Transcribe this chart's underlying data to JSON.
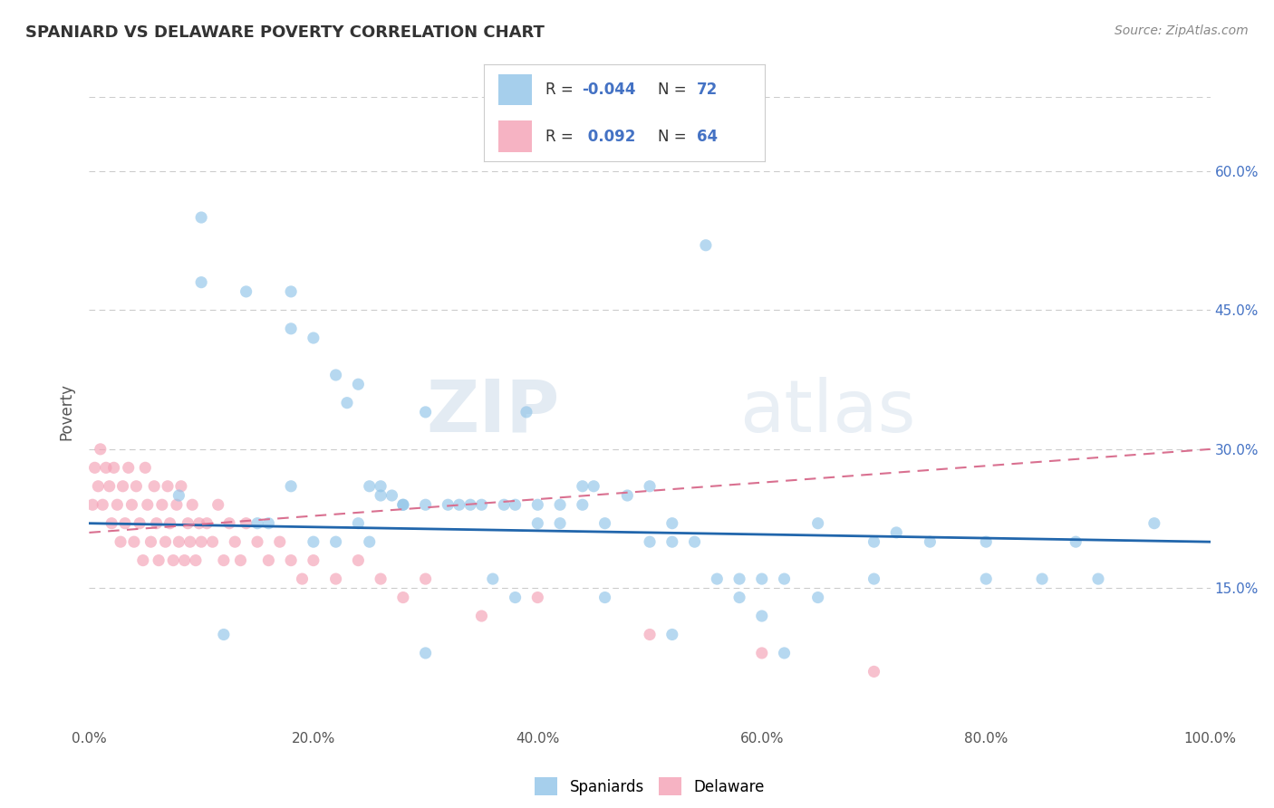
{
  "title": "SPANIARD VS DELAWARE POVERTY CORRELATION CHART",
  "source_text": "Source: ZipAtlas.com",
  "ylabel": "Poverty",
  "xlim": [
    0,
    100
  ],
  "ylim": [
    0,
    68
  ],
  "yticks": [
    15,
    30,
    45,
    60
  ],
  "ytick_labels": [
    "15.0%",
    "30.0%",
    "45.0%",
    "60.0%"
  ],
  "xticks": [
    0,
    20,
    40,
    60,
    80,
    100
  ],
  "xtick_labels": [
    "0.0%",
    "20.0%",
    "40.0%",
    "60.0%",
    "80.0%",
    "100.0%"
  ],
  "grid_color": "#cccccc",
  "background_color": "#ffffff",
  "blue_color": "#90c4e8",
  "pink_color": "#f4a0b5",
  "blue_line_color": "#2166ac",
  "pink_line_color": "#d97090",
  "legend_R1": "-0.044",
  "legend_N1": "72",
  "legend_R2": "0.092",
  "legend_N2": "64",
  "legend_label1": "Spaniards",
  "legend_label2": "Delaware",
  "watermark_zip": "ZIP",
  "watermark_atlas": "atlas",
  "blue_scatter_x": [
    10,
    10,
    14,
    18,
    18,
    20,
    22,
    23,
    24,
    25,
    26,
    27,
    28,
    30,
    32,
    33,
    35,
    37,
    38,
    39,
    40,
    42,
    44,
    44,
    46,
    48,
    50,
    52,
    52,
    54,
    56,
    58,
    60,
    60,
    62,
    65,
    70,
    72,
    75,
    80,
    85,
    88,
    95,
    36,
    45,
    55,
    65,
    8,
    15,
    28,
    20,
    30,
    24,
    26,
    22,
    18,
    12,
    16,
    34,
    42,
    50,
    58,
    46,
    38,
    30,
    52,
    62,
    70,
    80,
    90,
    25,
    40
  ],
  "blue_scatter_y": [
    55,
    48,
    47,
    47,
    43,
    42,
    38,
    35,
    37,
    26,
    25,
    25,
    24,
    24,
    24,
    24,
    24,
    24,
    24,
    34,
    22,
    22,
    24,
    26,
    22,
    25,
    26,
    20,
    22,
    20,
    16,
    16,
    16,
    12,
    16,
    14,
    20,
    21,
    20,
    20,
    16,
    20,
    22,
    16,
    26,
    52,
    22,
    25,
    22,
    24,
    20,
    34,
    22,
    26,
    20,
    26,
    10,
    22,
    24,
    24,
    20,
    14,
    14,
    14,
    8,
    10,
    8,
    16,
    16,
    16,
    20,
    24
  ],
  "pink_scatter_x": [
    0.3,
    0.5,
    0.8,
    1.0,
    1.2,
    1.5,
    1.8,
    2.0,
    2.2,
    2.5,
    2.8,
    3.0,
    3.2,
    3.5,
    3.8,
    4.0,
    4.2,
    4.5,
    4.8,
    5.0,
    5.2,
    5.5,
    5.8,
    6.0,
    6.2,
    6.5,
    6.8,
    7.0,
    7.2,
    7.5,
    7.8,
    8.0,
    8.2,
    8.5,
    8.8,
    9.0,
    9.2,
    9.5,
    9.8,
    10.0,
    10.5,
    11.0,
    11.5,
    12.0,
    12.5,
    13.0,
    13.5,
    14.0,
    15.0,
    16.0,
    17.0,
    18.0,
    19.0,
    20.0,
    22.0,
    24.0,
    26.0,
    28.0,
    30.0,
    35.0,
    40.0,
    50.0,
    60.0,
    70.0
  ],
  "pink_scatter_y": [
    24,
    28,
    26,
    30,
    24,
    28,
    26,
    22,
    28,
    24,
    20,
    26,
    22,
    28,
    24,
    20,
    26,
    22,
    18,
    28,
    24,
    20,
    26,
    22,
    18,
    24,
    20,
    26,
    22,
    18,
    24,
    20,
    26,
    18,
    22,
    20,
    24,
    18,
    22,
    20,
    22,
    20,
    24,
    18,
    22,
    20,
    18,
    22,
    20,
    18,
    20,
    18,
    16,
    18,
    16,
    18,
    16,
    14,
    16,
    12,
    14,
    10,
    8,
    6
  ],
  "blue_trend_x": [
    0,
    100
  ],
  "blue_trend_y": [
    22.0,
    20.0
  ],
  "pink_trend_x": [
    0,
    100
  ],
  "pink_trend_y": [
    21.0,
    30.0
  ]
}
